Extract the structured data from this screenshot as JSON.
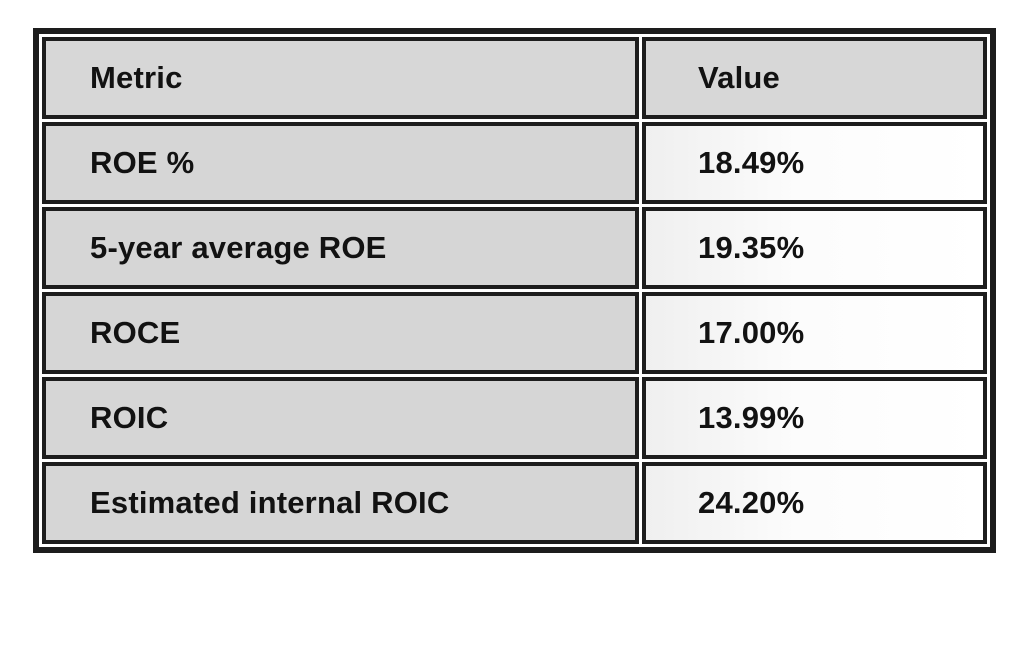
{
  "table": {
    "headers": {
      "metric": "Metric",
      "value": "Value"
    },
    "rows": [
      {
        "metric": "ROE %",
        "value": "18.49%"
      },
      {
        "metric": "5-year average ROE",
        "value": "19.35%"
      },
      {
        "metric": "ROCE",
        "value": "17.00%"
      },
      {
        "metric": "ROIC",
        "value": "13.99%"
      },
      {
        "metric": "Estimated internal ROIC",
        "value": "24.20%"
      }
    ],
    "colors": {
      "border": "#1d1d1d",
      "header_bg": "#d7d7d7",
      "metric_bg": "#d6d6d6",
      "value_bg": "#fcfcfc",
      "text": "#121212"
    }
  },
  "chart_data": {
    "type": "table",
    "title": "",
    "columns": [
      "Metric",
      "Value"
    ],
    "rows": [
      [
        "ROE %",
        "18.49%"
      ],
      [
        "5-year average ROE",
        "19.35%"
      ],
      [
        "ROCE",
        "17.00%"
      ],
      [
        "ROIC",
        "13.99%"
      ],
      [
        "Estimated internal ROIC",
        "24.20%"
      ]
    ]
  }
}
